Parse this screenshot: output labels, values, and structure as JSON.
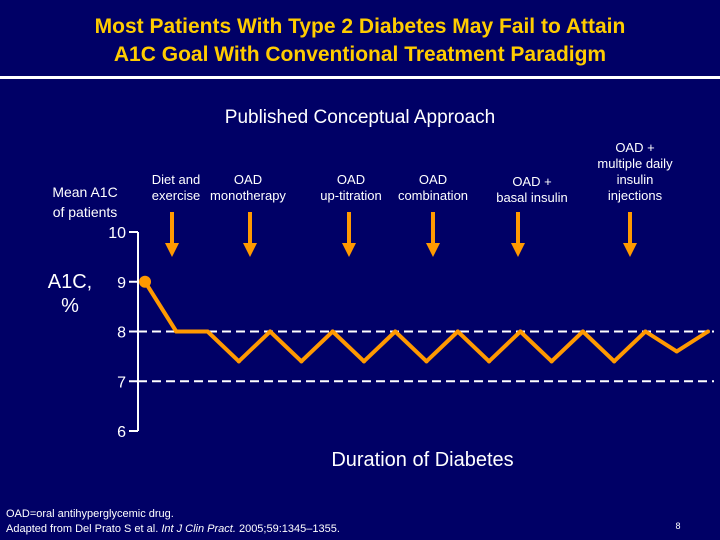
{
  "slide": {
    "title_line1": "Most Patients With Type 2 Diabetes May Fail to Attain",
    "title_line2": "A1C Goal With Conventional Treatment Paradigm",
    "subtitle": "Published Conceptual Approach",
    "ylabel_top_line1": "Mean A1C",
    "ylabel_top_line2": "of patients",
    "ylabel_side_line1": "A1C,",
    "ylabel_side_line2": "%",
    "xlabel": "Duration of Diabetes",
    "footnote_line1": "OAD=oral antihyperglycemic drug.",
    "footnote_line2_prefix": "Adapted from Del Prato S et al.",
    "footnote_line2_journal": "Int J Clin Pract.",
    "footnote_line2_suffix": "2005;59:1345–1355.",
    "page_number": "8",
    "stages": [
      {
        "line1": "Diet and",
        "line2": "exercise"
      },
      {
        "line1": "OAD",
        "line2": "monotherapy"
      },
      {
        "line1": "OAD",
        "line2": "up-titration"
      },
      {
        "line1": "OAD",
        "line2": "combination"
      },
      {
        "line1": "OAD +",
        "line2": "basal insulin"
      },
      {
        "line1": "OAD +",
        "line2": "multiple daily",
        "line3": "insulin",
        "line4": "injections"
      }
    ],
    "colors": {
      "background": "#000066",
      "title": "#ffcc00",
      "text": "#ffffff",
      "series": "#ff9900",
      "axis": "#ffffff"
    }
  },
  "chart_data": {
    "type": "line",
    "xlabel": "Duration of Diabetes",
    "ylabel": "A1C, %",
    "ylim": [
      6,
      10
    ],
    "yticks": [
      "10",
      "9",
      "8",
      "7",
      "6"
    ],
    "reference_lines": [
      {
        "y": 8,
        "style": "dashed"
      },
      {
        "y": 7,
        "style": "dashed"
      }
    ],
    "series": [
      {
        "values": [
          9.0,
          8.0,
          8.0,
          7.4,
          8.0,
          7.4,
          8.0,
          7.4,
          8.0,
          7.4,
          8.0,
          7.4,
          8.0,
          7.4,
          8.0,
          7.4,
          8.0,
          7.6,
          8.0
        ]
      }
    ]
  }
}
